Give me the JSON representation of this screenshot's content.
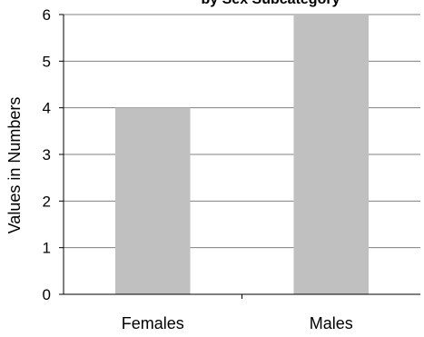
{
  "chart_data": {
    "type": "bar",
    "title": "by Sex Subcategory",
    "xlabel": "",
    "ylabel": "Values in Numbers",
    "categories": [
      "Females",
      "Males"
    ],
    "values": [
      4,
      6
    ],
    "ylim": [
      0,
      6
    ],
    "yticks": [
      "0",
      "1",
      "2",
      "3",
      "4",
      "5",
      "6"
    ],
    "grid": true,
    "bar_color": "#c0c0c0",
    "grid_color": "#808080"
  }
}
